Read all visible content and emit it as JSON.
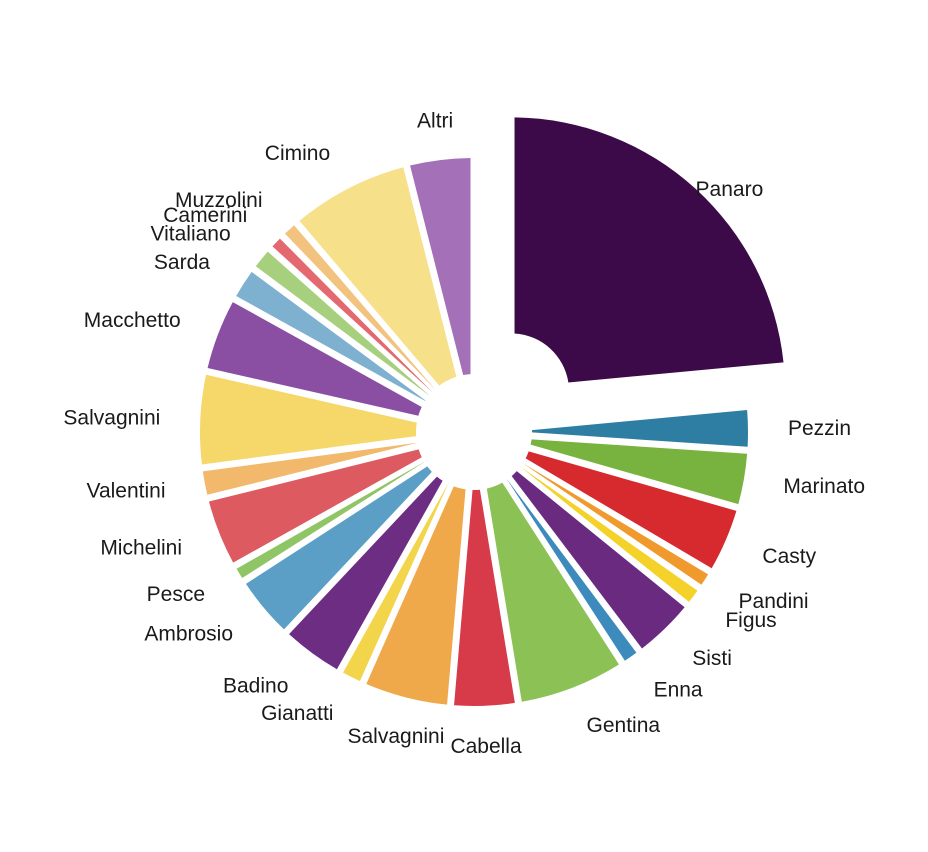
{
  "chart_data": {
    "type": "pie",
    "title": "",
    "legend": "none",
    "slices": [
      {
        "label": "Panaro",
        "value": 25.0,
        "color": "#3c0a49"
      },
      {
        "label": "Pezzin",
        "value": 2.7,
        "color": "#2e7ea3"
      },
      {
        "label": "Marinato",
        "value": 3.6,
        "color": "#78b23f"
      },
      {
        "label": "Casty",
        "value": 4.3,
        "color": "#d62a2f"
      },
      {
        "label": "Pandini",
        "value": 1.2,
        "color": "#f09a2e"
      },
      {
        "label": "Figus",
        "value": 1.3,
        "color": "#f4d22a"
      },
      {
        "label": "Sisti",
        "value": 4.1,
        "color": "#6a2a80"
      },
      {
        "label": "Enna",
        "value": 1.3,
        "color": "#3d8bbd"
      },
      {
        "label": "Gentina",
        "value": 6.9,
        "color": "#8cc255"
      },
      {
        "label": "Cabella",
        "value": 4.2,
        "color": "#d73a49"
      },
      {
        "label": "Salvagnini",
        "value": 5.6,
        "color": "#f0a94a"
      },
      {
        "label": "Gianatti",
        "value": 1.6,
        "color": "#f2d54a"
      },
      {
        "label": "Badino",
        "value": 4.1,
        "color": "#6c2d83"
      },
      {
        "label": "Ambrosio",
        "value": 4.1,
        "color": "#5c9fc6"
      },
      {
        "label": "Pesce",
        "value": 1.1,
        "color": "#90c565"
      },
      {
        "label": "Michelini",
        "value": 4.5,
        "color": "#dd5a60"
      },
      {
        "label": "Valentini",
        "value": 1.9,
        "color": "#f2b96c"
      },
      {
        "label": "Salvagnini",
        "value": 6.0,
        "color": "#f5d76a"
      },
      {
        "label": "Macchetto",
        "value": 4.8,
        "color": "#8a4fa3"
      },
      {
        "label": "Sarda",
        "value": 2.2,
        "color": "#7eb0cf"
      },
      {
        "label": "Vitaliano",
        "value": 1.6,
        "color": "#a7d07e"
      },
      {
        "label": "Camerini",
        "value": 1.1,
        "color": "#e36870"
      },
      {
        "label": "Muzzolini",
        "value": 1.2,
        "color": "#f2c27f"
      },
      {
        "label": "Cimino",
        "value": 7.7,
        "color": "#f6e18a"
      },
      {
        "label": "Altri",
        "value": 4.2,
        "color": "#a470b8"
      }
    ]
  }
}
